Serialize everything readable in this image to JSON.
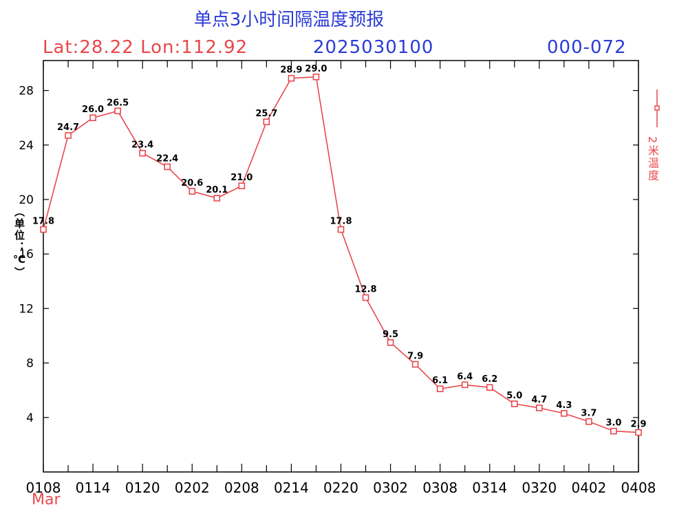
{
  "title": "单点3小时间隔温度预报",
  "lat_lon": "Lat:28.22  Lon:112.92",
  "run_time": "2025030100",
  "forecast_range": "000-072",
  "ylabel": "（单位：℃）",
  "month_label": "Mar",
  "colors": {
    "series": "#e8474c",
    "header_blue": "#2b3bd6",
    "axis": "#000000"
  },
  "chart_data": {
    "type": "line",
    "title": "单点3小时间隔温度预报",
    "xlabel": "",
    "ylabel": "（单位：℃）",
    "x": [
      "0108",
      "0111",
      "0114",
      "0117",
      "0120",
      "0123",
      "0202",
      "0205",
      "0208",
      "0211",
      "0214",
      "0217",
      "0220",
      "0223",
      "0302",
      "0305",
      "0308",
      "0311",
      "0314",
      "0317",
      "0320",
      "0323",
      "0402",
      "0405",
      "0408"
    ],
    "x_tick_labels": [
      "0108",
      "0114",
      "0120",
      "0202",
      "0208",
      "0214",
      "0220",
      "0302",
      "0308",
      "0314",
      "0320",
      "0402",
      "0408"
    ],
    "y_ticks": [
      4,
      8,
      12,
      16,
      20,
      24,
      28
    ],
    "ylim": [
      0,
      30.2
    ],
    "grid": false,
    "legend_position": "right",
    "series": [
      {
        "name": "2米温度",
        "values": [
          17.8,
          24.7,
          26.0,
          26.5,
          23.4,
          22.4,
          20.6,
          20.1,
          21.0,
          25.7,
          28.9,
          29.0,
          17.8,
          12.8,
          9.5,
          7.9,
          6.1,
          6.4,
          6.2,
          5.0,
          4.7,
          4.3,
          3.7,
          3.0,
          2.9
        ],
        "labels": [
          "17.8",
          "24.7",
          "26.0",
          "26.5",
          "23.4",
          "22.4",
          "20.6",
          "20.1",
          "21.0",
          "25.7",
          "28.9",
          "29.0",
          "17.8",
          "12.8",
          "9.5",
          "7.9",
          "6.1",
          "6.4",
          "6.2",
          "5.0",
          "4.7",
          "4.3",
          "3.7",
          "3.0",
          "2.9"
        ]
      }
    ]
  }
}
